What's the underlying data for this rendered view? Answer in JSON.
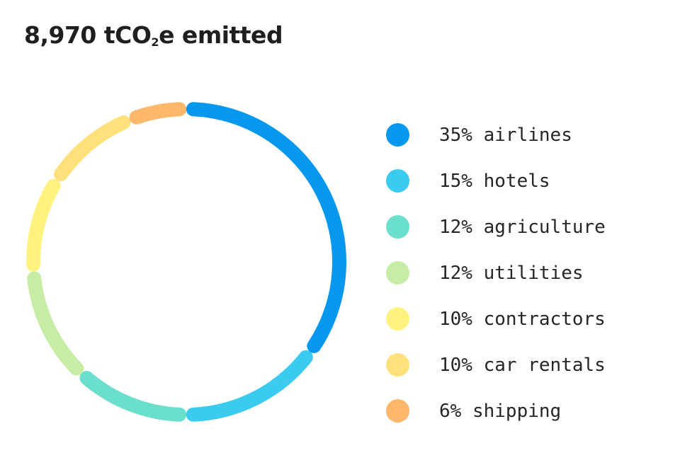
{
  "header": {
    "title_main": "8,970 tCO",
    "title_sub": "2",
    "title_suffix": "e emitted"
  },
  "chart_data": {
    "type": "pie",
    "style": "donut",
    "legend_position": "right",
    "categories": [
      "airlines",
      "hotels",
      "agriculture",
      "utilities",
      "contractors",
      "car rentals",
      "shipping"
    ],
    "values": [
      35,
      15,
      12,
      12,
      10,
      10,
      6
    ],
    "colors": [
      "#0598EE",
      "#3BCBF1",
      "#6ADFCB",
      "#C6EDA3",
      "#FFF27E",
      "#FFE07A",
      "#FFB86A"
    ],
    "legend": [
      {
        "pct": "35%",
        "label": "airlines"
      },
      {
        "pct": "15%",
        "label": "hotels"
      },
      {
        "pct": "12%",
        "label": "agriculture"
      },
      {
        "pct": "12%",
        "label": "utilities"
      },
      {
        "pct": "10%",
        "label": "contractors"
      },
      {
        "pct": "10%",
        "label": "car rentals"
      },
      {
        "pct": "6%",
        "label": "shipping"
      }
    ]
  }
}
